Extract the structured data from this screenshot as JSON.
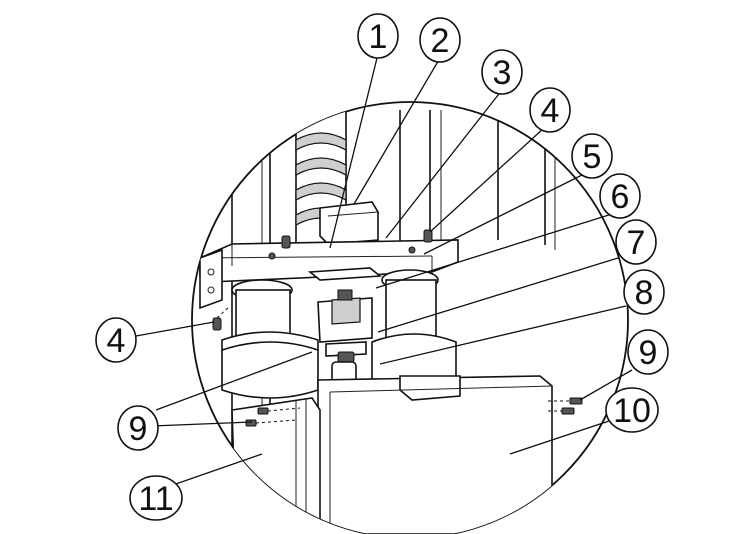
{
  "callouts": [
    {
      "id": "c1",
      "label": "1"
    },
    {
      "id": "c2",
      "label": "2"
    },
    {
      "id": "c3",
      "label": "3"
    },
    {
      "id": "c4a",
      "label": "4"
    },
    {
      "id": "c5",
      "label": "5"
    },
    {
      "id": "c6",
      "label": "6"
    },
    {
      "id": "c7",
      "label": "7"
    },
    {
      "id": "c8",
      "label": "8"
    },
    {
      "id": "c9a",
      "label": "9"
    },
    {
      "id": "c10",
      "label": "10"
    },
    {
      "id": "c4b",
      "label": "4"
    },
    {
      "id": "c9b",
      "label": "9"
    },
    {
      "id": "c11",
      "label": "11"
    }
  ]
}
